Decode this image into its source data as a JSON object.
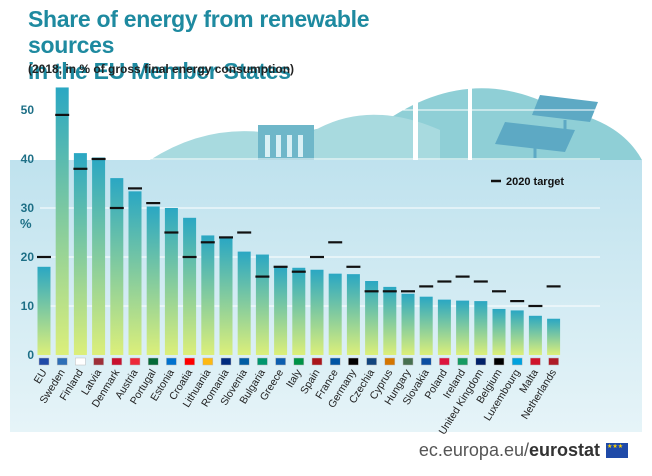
{
  "header": {
    "title_line1": "Share of energy from renewable sources",
    "title_line2": "in the EU Member States",
    "subtitle": "(2018, in % of gross final energy consumption)"
  },
  "footer": {
    "domain": "ec.europa.eu/",
    "brand": "eurostat"
  },
  "colors": {
    "bar_top": "#2aa7c3",
    "bar_bottom": "#dcef7a",
    "panel": "#d8eef5",
    "target": "#111111",
    "title": "#1e8aa0"
  },
  "chart_data": {
    "type": "bar",
    "title": "Share of energy from renewable sources in the EU Member States",
    "subtitle": "(2018, in % of gross final energy consumption)",
    "ylabel": "%",
    "ylim": [
      0,
      56
    ],
    "yticks": [
      0,
      10,
      20,
      30,
      40,
      50
    ],
    "grid": true,
    "legend": {
      "position": "top-right",
      "entries": [
        "2020 target"
      ]
    },
    "categories": [
      "EU",
      "Sweden",
      "Finland",
      "Latvia",
      "Denmark",
      "Austria",
      "Portugal",
      "Estonia",
      "Croatia",
      "Lithuania",
      "Romania",
      "Slovenia",
      "Bulgaria",
      "Greece",
      "Italy",
      "Spain",
      "France",
      "Germany",
      "Czechia",
      "Cyprus",
      "Hungary",
      "Slovakia",
      "Poland",
      "Ireland",
      "United Kingdom",
      "Belgium",
      "Luxembourg",
      "Malta",
      "Netherlands"
    ],
    "series": [
      {
        "values": [
          18.0,
          54.6,
          41.2,
          40.3,
          36.1,
          33.4,
          30.3,
          30.0,
          28.0,
          24.4,
          23.9,
          21.1,
          20.5,
          18.0,
          17.8,
          17.4,
          16.6,
          16.5,
          15.1,
          13.9,
          12.5,
          11.9,
          11.3,
          11.1,
          11.0,
          9.4,
          9.1,
          8.0,
          7.4
        ]
      },
      {
        "name": "2020 target",
        "values": [
          20,
          49,
          38,
          40,
          30,
          34,
          31,
          25,
          20,
          23,
          24,
          25,
          16,
          18,
          17,
          20,
          23,
          18,
          13,
          13,
          13,
          14,
          15,
          16,
          15,
          13,
          11,
          10,
          14
        ]
      }
    ]
  }
}
